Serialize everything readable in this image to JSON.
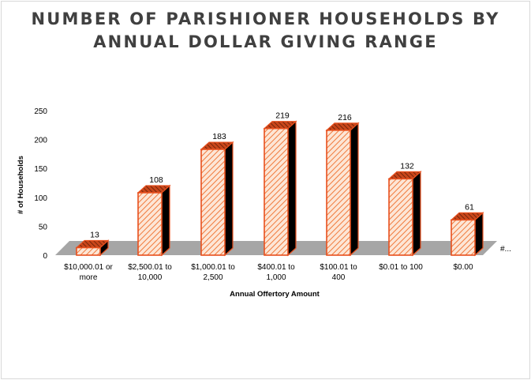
{
  "chart_data": {
    "type": "bar",
    "title_line1": "NUMBER OF PARISHIONER HOUSEHOLDS BY",
    "title_line2": "ANNUAL DOLLAR GIVING RANGE",
    "xlabel": "Annual Offertory Amount",
    "ylabel": "# of Households",
    "ylim": [
      0,
      250
    ],
    "yticks": [
      0,
      50,
      100,
      150,
      200,
      250
    ],
    "categories": [
      [
        "$10,000.01 or",
        "more"
      ],
      [
        "$2,500.01 to",
        "10,000"
      ],
      [
        "$1,000.01 to",
        "2,500"
      ],
      [
        "$400.01 to",
        "1,000"
      ],
      [
        "$100.01 to",
        "400"
      ],
      [
        "$0.01 to 100"
      ],
      [
        "$0.00"
      ]
    ],
    "values": [
      13,
      108,
      183,
      219,
      216,
      132,
      61
    ],
    "series_overflow_label": "#...",
    "bar_fill": "#fde6d6",
    "bar_stroke": "#e8501e",
    "hatch_color": "#f07a3c",
    "floor_color": "#a6a6a6",
    "side_color": "#000000"
  }
}
